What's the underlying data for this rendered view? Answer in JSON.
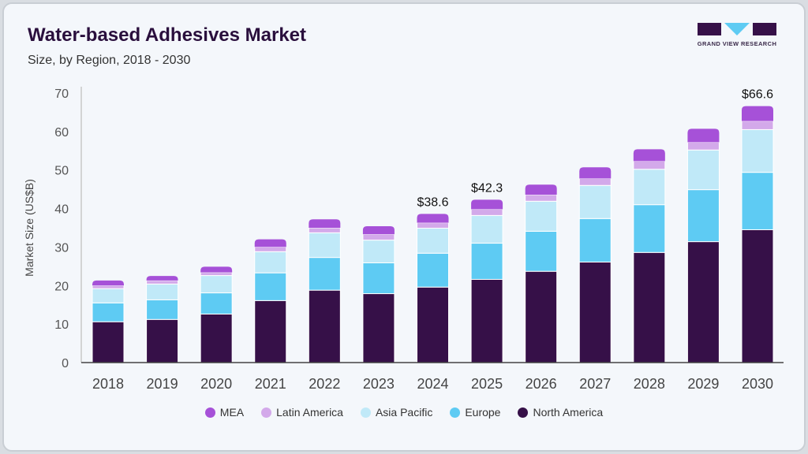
{
  "header": {
    "title": "Water-based Adhesives Market",
    "subtitle": "Size, by Region, 2018 - 2030"
  },
  "logo": {
    "text": "GRAND VIEW RESEARCH"
  },
  "chart_data": {
    "type": "bar",
    "stacked": true,
    "ylabel": "Market Size (US$B)",
    "ylim": [
      0,
      70
    ],
    "yticks": [
      0,
      10,
      20,
      30,
      40,
      50,
      60,
      70
    ],
    "grid": false,
    "legend_position": "bottom",
    "categories": [
      "2018",
      "2019",
      "2020",
      "2021",
      "2022",
      "2023",
      "2024",
      "2025",
      "2026",
      "2027",
      "2028",
      "2029",
      "2030"
    ],
    "series": [
      {
        "name": "North America",
        "color": "#361048",
        "values": [
          10.6,
          11.2,
          12.6,
          16.1,
          18.8,
          17.9,
          19.6,
          21.6,
          23.7,
          26.1,
          28.6,
          31.4,
          34.5
        ]
      },
      {
        "name": "Europe",
        "color": "#5ecbf3",
        "values": [
          4.9,
          5.1,
          5.5,
          7.2,
          8.5,
          8.0,
          8.8,
          9.4,
          10.4,
          11.3,
          12.4,
          13.5,
          14.9
        ]
      },
      {
        "name": "Asia Pacific",
        "color": "#c0e9f8",
        "values": [
          3.7,
          4.1,
          4.5,
          5.5,
          6.4,
          5.9,
          6.5,
          7.2,
          7.8,
          8.6,
          9.2,
          10.3,
          11.1
        ]
      },
      {
        "name": "Latin America",
        "color": "#d3a9ea",
        "values": [
          0.8,
          0.9,
          0.8,
          1.2,
          1.3,
          1.5,
          1.4,
          1.6,
          1.7,
          1.8,
          2.1,
          2.0,
          2.2
        ]
      },
      {
        "name": "MEA",
        "color": "#a651d8",
        "values": [
          1.3,
          1.2,
          1.5,
          2.0,
          2.2,
          2.1,
          2.3,
          2.5,
          2.6,
          2.9,
          3.1,
          3.5,
          3.9
        ]
      }
    ],
    "data_labels": [
      {
        "category": "2024",
        "text": "$38.6"
      },
      {
        "category": "2025",
        "text": "$42.3"
      },
      {
        "category": "2030",
        "text": "$66.6"
      }
    ],
    "legend_order": [
      "MEA",
      "Latin America",
      "Asia Pacific",
      "Europe",
      "North America"
    ]
  }
}
